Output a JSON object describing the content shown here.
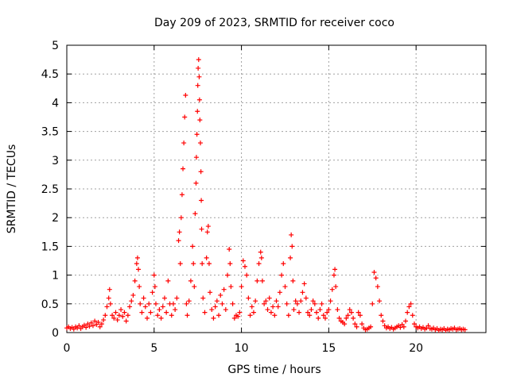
{
  "chart_data": {
    "type": "scatter",
    "title": "Day 209 of 2023, SRMTID for receiver coco",
    "xlabel": "GPS time / hours",
    "ylabel": "SRMTID / TECUs",
    "xlim": [
      0,
      24
    ],
    "ylim": [
      0,
      5
    ],
    "xticks": [
      0,
      5,
      10,
      15,
      20
    ],
    "xtick_labels": [
      "0",
      "5",
      "10",
      "15",
      "20"
    ],
    "yticks": [
      0,
      0.5,
      1,
      1.5,
      2,
      2.5,
      3,
      3.5,
      4,
      4.5,
      5
    ],
    "ytick_labels": [
      "0",
      "0.5",
      "1",
      "1.5",
      "2",
      "2.5",
      "3",
      "3.5",
      "4",
      "4.5",
      "5"
    ],
    "grid": true,
    "marker": "+",
    "color": "#ff0000",
    "series": [
      {
        "name": "SRMTID",
        "points": [
          [
            0.0,
            0.08
          ],
          [
            0.1,
            0.1
          ],
          [
            0.2,
            0.07
          ],
          [
            0.3,
            0.09
          ],
          [
            0.4,
            0.06
          ],
          [
            0.5,
            0.1
          ],
          [
            0.6,
            0.08
          ],
          [
            0.7,
            0.12
          ],
          [
            0.8,
            0.07
          ],
          [
            0.9,
            0.1
          ],
          [
            1.0,
            0.13
          ],
          [
            1.1,
            0.09
          ],
          [
            1.2,
            0.15
          ],
          [
            1.3,
            0.11
          ],
          [
            1.4,
            0.17
          ],
          [
            1.5,
            0.12
          ],
          [
            1.6,
            0.2
          ],
          [
            1.7,
            0.14
          ],
          [
            1.8,
            0.18
          ],
          [
            1.9,
            0.1
          ],
          [
            2.0,
            0.15
          ],
          [
            2.1,
            0.22
          ],
          [
            2.2,
            0.3
          ],
          [
            2.3,
            0.45
          ],
          [
            2.4,
            0.6
          ],
          [
            2.45,
            0.75
          ],
          [
            2.5,
            0.5
          ],
          [
            2.6,
            0.3
          ],
          [
            2.7,
            0.25
          ],
          [
            2.8,
            0.35
          ],
          [
            2.9,
            0.22
          ],
          [
            3.0,
            0.3
          ],
          [
            3.1,
            0.4
          ],
          [
            3.2,
            0.28
          ],
          [
            3.3,
            0.35
          ],
          [
            3.4,
            0.2
          ],
          [
            3.5,
            0.3
          ],
          [
            3.6,
            0.45
          ],
          [
            3.7,
            0.55
          ],
          [
            3.8,
            0.65
          ],
          [
            3.9,
            0.9
          ],
          [
            4.0,
            1.2
          ],
          [
            4.05,
            1.3
          ],
          [
            4.1,
            1.1
          ],
          [
            4.15,
            0.8
          ],
          [
            4.2,
            0.5
          ],
          [
            4.3,
            0.35
          ],
          [
            4.4,
            0.6
          ],
          [
            4.5,
            0.45
          ],
          [
            4.6,
            0.25
          ],
          [
            4.7,
            0.5
          ],
          [
            4.8,
            0.35
          ],
          [
            4.9,
            0.7
          ],
          [
            5.0,
            1.0
          ],
          [
            5.05,
            0.8
          ],
          [
            5.1,
            0.5
          ],
          [
            5.2,
            0.3
          ],
          [
            5.3,
            0.4
          ],
          [
            5.4,
            0.25
          ],
          [
            5.5,
            0.45
          ],
          [
            5.6,
            0.6
          ],
          [
            5.7,
            0.35
          ],
          [
            5.8,
            0.9
          ],
          [
            5.9,
            0.5
          ],
          [
            6.0,
            0.3
          ],
          [
            6.1,
            0.5
          ],
          [
            6.2,
            0.4
          ],
          [
            6.3,
            0.6
          ],
          [
            6.4,
            1.6
          ],
          [
            6.45,
            1.75
          ],
          [
            6.5,
            1.2
          ],
          [
            6.55,
            2.0
          ],
          [
            6.6,
            2.4
          ],
          [
            6.65,
            2.85
          ],
          [
            6.7,
            3.3
          ],
          [
            6.75,
            3.75
          ],
          [
            6.8,
            4.13
          ],
          [
            6.85,
            0.5
          ],
          [
            6.9,
            0.3
          ],
          [
            7.0,
            0.55
          ],
          [
            7.1,
            0.9
          ],
          [
            7.2,
            1.5
          ],
          [
            7.25,
            1.2
          ],
          [
            7.3,
            0.8
          ],
          [
            7.35,
            2.07
          ],
          [
            7.4,
            2.6
          ],
          [
            7.42,
            3.05
          ],
          [
            7.45,
            3.45
          ],
          [
            7.48,
            3.85
          ],
          [
            7.5,
            4.3
          ],
          [
            7.52,
            4.6
          ],
          [
            7.55,
            4.75
          ],
          [
            7.58,
            4.45
          ],
          [
            7.6,
            4.05
          ],
          [
            7.62,
            3.7
          ],
          [
            7.65,
            3.3
          ],
          [
            7.68,
            2.8
          ],
          [
            7.7,
            2.3
          ],
          [
            7.72,
            1.8
          ],
          [
            7.75,
            1.2
          ],
          [
            7.8,
            0.6
          ],
          [
            7.9,
            0.35
          ],
          [
            8.0,
            1.3
          ],
          [
            8.05,
            1.75
          ],
          [
            8.1,
            1.85
          ],
          [
            8.15,
            1.2
          ],
          [
            8.2,
            0.7
          ],
          [
            8.3,
            0.4
          ],
          [
            8.4,
            0.25
          ],
          [
            8.5,
            0.45
          ],
          [
            8.6,
            0.55
          ],
          [
            8.7,
            0.3
          ],
          [
            8.8,
            0.65
          ],
          [
            8.9,
            0.5
          ],
          [
            9.0,
            0.75
          ],
          [
            9.1,
            0.4
          ],
          [
            9.2,
            1.0
          ],
          [
            9.3,
            1.45
          ],
          [
            9.35,
            1.2
          ],
          [
            9.4,
            0.8
          ],
          [
            9.5,
            0.5
          ],
          [
            9.6,
            0.25
          ],
          [
            9.7,
            0.3
          ],
          [
            9.8,
            0.28
          ],
          [
            9.9,
            0.35
          ],
          [
            10.0,
            0.8
          ],
          [
            10.1,
            1.25
          ],
          [
            10.2,
            1.15
          ],
          [
            10.3,
            1.0
          ],
          [
            10.4,
            0.6
          ],
          [
            10.5,
            0.3
          ],
          [
            10.6,
            0.45
          ],
          [
            10.7,
            0.35
          ],
          [
            10.8,
            0.55
          ],
          [
            10.9,
            0.9
          ],
          [
            11.0,
            1.2
          ],
          [
            11.1,
            1.4
          ],
          [
            11.15,
            1.3
          ],
          [
            11.2,
            0.9
          ],
          [
            11.3,
            0.5
          ],
          [
            11.4,
            0.55
          ],
          [
            11.5,
            0.4
          ],
          [
            11.6,
            0.6
          ],
          [
            11.7,
            0.35
          ],
          [
            11.8,
            0.45
          ],
          [
            11.9,
            0.3
          ],
          [
            12.0,
            0.55
          ],
          [
            12.1,
            0.45
          ],
          [
            12.2,
            0.7
          ],
          [
            12.3,
            1.0
          ],
          [
            12.4,
            1.2
          ],
          [
            12.5,
            0.8
          ],
          [
            12.6,
            0.5
          ],
          [
            12.7,
            0.3
          ],
          [
            12.8,
            1.3
          ],
          [
            12.85,
            1.7
          ],
          [
            12.9,
            1.5
          ],
          [
            12.95,
            0.9
          ],
          [
            13.0,
            0.4
          ],
          [
            13.1,
            0.55
          ],
          [
            13.2,
            0.5
          ],
          [
            13.3,
            0.35
          ],
          [
            13.4,
            0.55
          ],
          [
            13.5,
            0.7
          ],
          [
            13.6,
            0.85
          ],
          [
            13.7,
            0.6
          ],
          [
            13.8,
            0.35
          ],
          [
            13.9,
            0.3
          ],
          [
            14.0,
            0.4
          ],
          [
            14.1,
            0.55
          ],
          [
            14.2,
            0.5
          ],
          [
            14.3,
            0.35
          ],
          [
            14.4,
            0.25
          ],
          [
            14.5,
            0.4
          ],
          [
            14.6,
            0.5
          ],
          [
            14.7,
            0.3
          ],
          [
            14.8,
            0.25
          ],
          [
            14.9,
            0.35
          ],
          [
            15.0,
            0.4
          ],
          [
            15.1,
            0.55
          ],
          [
            15.2,
            0.75
          ],
          [
            15.3,
            1.0
          ],
          [
            15.35,
            1.1
          ],
          [
            15.4,
            0.8
          ],
          [
            15.5,
            0.4
          ],
          [
            15.6,
            0.25
          ],
          [
            15.7,
            0.2
          ],
          [
            15.8,
            0.18
          ],
          [
            15.9,
            0.15
          ],
          [
            16.0,
            0.25
          ],
          [
            16.1,
            0.3
          ],
          [
            16.2,
            0.4
          ],
          [
            16.3,
            0.35
          ],
          [
            16.4,
            0.25
          ],
          [
            16.5,
            0.15
          ],
          [
            16.6,
            0.1
          ],
          [
            16.7,
            0.35
          ],
          [
            16.8,
            0.3
          ],
          [
            16.9,
            0.15
          ],
          [
            17.0,
            0.08
          ],
          [
            17.1,
            0.05
          ],
          [
            17.2,
            0.06
          ],
          [
            17.3,
            0.08
          ],
          [
            17.4,
            0.1
          ],
          [
            17.5,
            0.5
          ],
          [
            17.6,
            1.05
          ],
          [
            17.7,
            0.95
          ],
          [
            17.8,
            0.8
          ],
          [
            17.9,
            0.55
          ],
          [
            18.0,
            0.3
          ],
          [
            18.1,
            0.2
          ],
          [
            18.2,
            0.12
          ],
          [
            18.3,
            0.08
          ],
          [
            18.4,
            0.1
          ],
          [
            18.5,
            0.07
          ],
          [
            18.6,
            0.09
          ],
          [
            18.7,
            0.06
          ],
          [
            18.8,
            0.08
          ],
          [
            18.9,
            0.1
          ],
          [
            19.0,
            0.12
          ],
          [
            19.1,
            0.09
          ],
          [
            19.2,
            0.14
          ],
          [
            19.3,
            0.1
          ],
          [
            19.4,
            0.2
          ],
          [
            19.5,
            0.35
          ],
          [
            19.6,
            0.45
          ],
          [
            19.7,
            0.5
          ],
          [
            19.8,
            0.3
          ],
          [
            19.9,
            0.15
          ],
          [
            20.0,
            0.1
          ],
          [
            20.1,
            0.08
          ],
          [
            20.2,
            0.1
          ],
          [
            20.3,
            0.07
          ],
          [
            20.4,
            0.09
          ],
          [
            20.5,
            0.06
          ],
          [
            20.6,
            0.08
          ],
          [
            20.7,
            0.12
          ],
          [
            20.8,
            0.07
          ],
          [
            20.9,
            0.06
          ],
          [
            21.0,
            0.08
          ],
          [
            21.1,
            0.05
          ],
          [
            21.2,
            0.07
          ],
          [
            21.3,
            0.04
          ],
          [
            21.4,
            0.06
          ],
          [
            21.5,
            0.05
          ],
          [
            21.6,
            0.07
          ],
          [
            21.7,
            0.04
          ],
          [
            21.8,
            0.06
          ],
          [
            21.9,
            0.05
          ],
          [
            22.0,
            0.07
          ],
          [
            22.1,
            0.06
          ],
          [
            22.2,
            0.08
          ],
          [
            22.3,
            0.05
          ],
          [
            22.4,
            0.06
          ],
          [
            22.5,
            0.07
          ],
          [
            22.6,
            0.05
          ],
          [
            22.7,
            0.06
          ],
          [
            22.8,
            0.05
          ]
        ]
      }
    ]
  }
}
